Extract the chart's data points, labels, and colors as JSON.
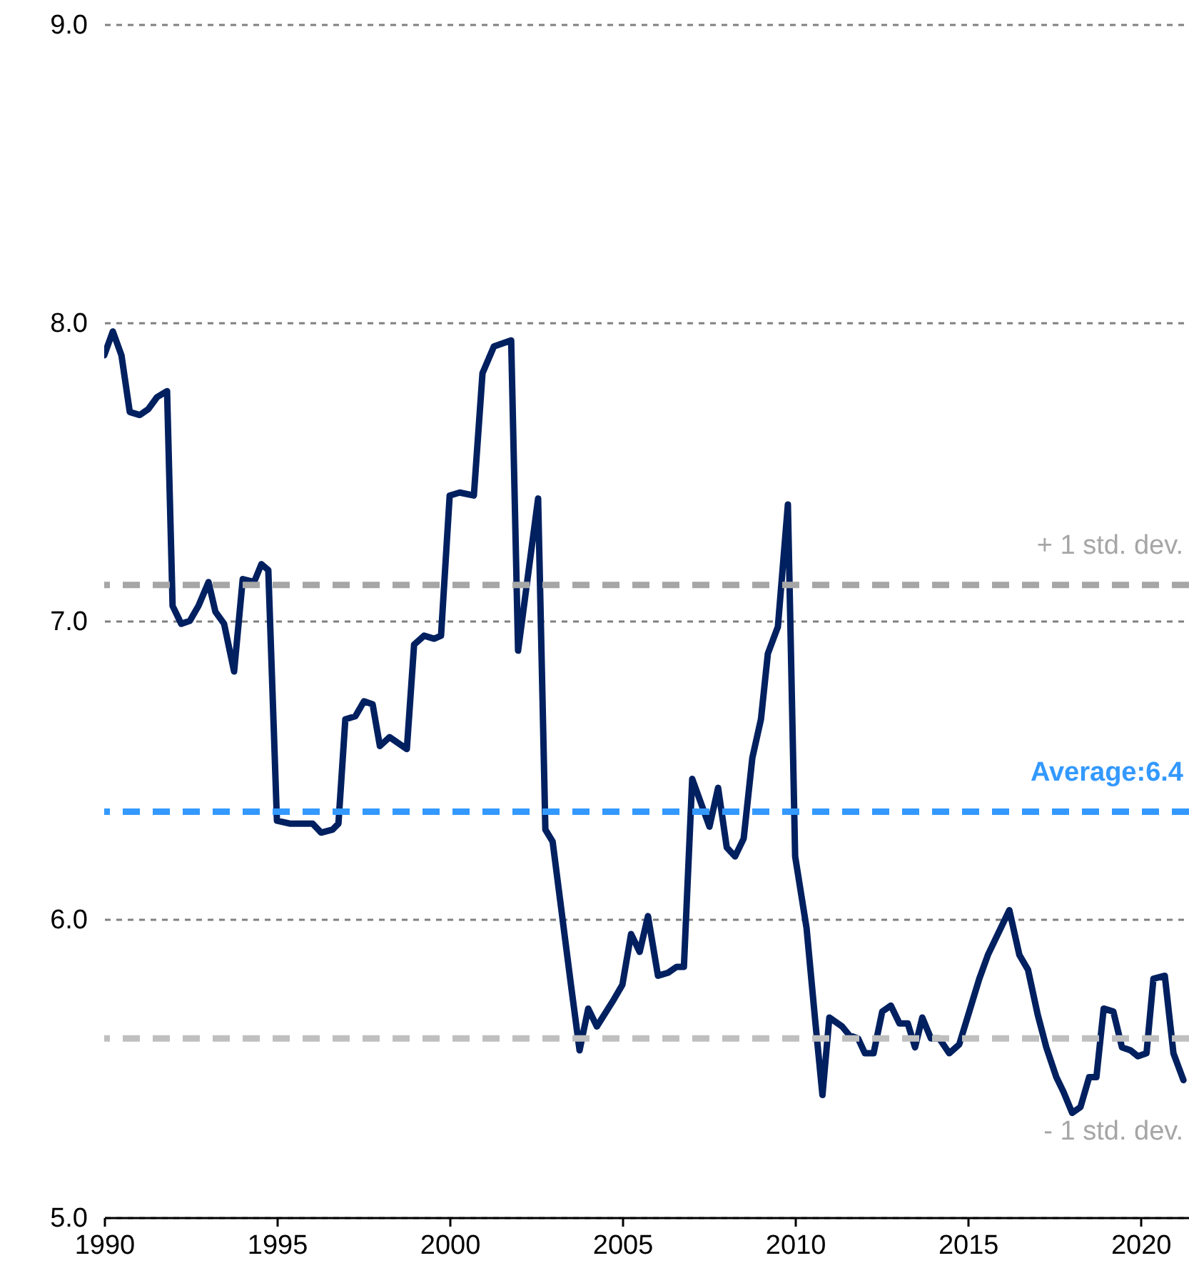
{
  "chart_data": {
    "type": "line",
    "x": [
      1990.0,
      1990.25,
      1990.5,
      1990.74,
      1991.03,
      1991.28,
      1991.53,
      1991.82,
      1991.98,
      1992.23,
      1992.48,
      1992.73,
      1993.02,
      1993.22,
      1993.47,
      1993.76,
      1994.01,
      1994.34,
      1994.55,
      1994.75,
      1995.0,
      1995.37,
      1995.74,
      1996.03,
      1996.28,
      1996.61,
      1996.78,
      1996.98,
      1997.27,
      1997.52,
      1997.77,
      1997.98,
      1998.26,
      1998.76,
      1998.97,
      1999.26,
      1999.55,
      1999.75,
      2000.0,
      2000.29,
      2000.7,
      2000.95,
      2001.28,
      2001.78,
      2001.98,
      2002.56,
      2002.77,
      2002.98,
      2003.51,
      2003.76,
      2004.01,
      2004.26,
      2004.75,
      2005.0,
      2005.25,
      2005.5,
      2005.74,
      2006.03,
      2006.32,
      2006.57,
      2006.78,
      2007.02,
      2007.52,
      2007.77,
      2008.02,
      2008.26,
      2008.51,
      2008.76,
      2009.01,
      2009.21,
      2009.5,
      2009.79,
      2010.0,
      2010.33,
      2010.58,
      2010.79,
      2010.99,
      2011.36,
      2011.57,
      2011.82,
      2012.02,
      2012.27,
      2012.52,
      2012.77,
      2013.02,
      2013.26,
      2013.47,
      2013.68,
      2013.93,
      2014.17,
      2014.46,
      2014.75,
      2015.04,
      2015.33,
      2015.58,
      2015.91,
      2016.2,
      2016.49,
      2016.74,
      2017.02,
      2017.27,
      2017.56,
      2017.77,
      2018.02,
      2018.26,
      2018.51,
      2018.72,
      2018.93,
      2019.21,
      2019.46,
      2019.71,
      2019.92,
      2020.17,
      2020.37,
      2020.7,
      2020.95,
      2021.24
    ],
    "series": [
      {
        "color": "#002060",
        "values": [
          7.89,
          7.97,
          7.89,
          7.7,
          7.69,
          7.71,
          7.75,
          7.77,
          7.05,
          6.99,
          7.0,
          7.05,
          7.13,
          7.03,
          6.99,
          6.83,
          7.14,
          7.13,
          7.19,
          7.17,
          6.33,
          6.32,
          6.32,
          6.32,
          6.29,
          6.3,
          6.32,
          6.67,
          6.68,
          6.73,
          6.72,
          6.58,
          6.61,
          6.57,
          6.92,
          6.95,
          6.94,
          6.95,
          7.42,
          7.43,
          7.42,
          7.83,
          7.92,
          7.94,
          6.9,
          7.41,
          6.3,
          6.26,
          5.78,
          5.56,
          5.7,
          5.64,
          5.73,
          5.78,
          5.95,
          5.89,
          6.01,
          5.81,
          5.82,
          5.84,
          5.84,
          6.47,
          6.31,
          6.44,
          6.24,
          6.21,
          6.27,
          6.54,
          6.67,
          6.89,
          6.98,
          7.39,
          6.21,
          5.97,
          5.66,
          5.41,
          5.67,
          5.64,
          5.61,
          5.6,
          5.55,
          5.55,
          5.69,
          5.71,
          5.65,
          5.65,
          5.57,
          5.67,
          5.6,
          5.6,
          5.55,
          5.58,
          5.69,
          5.8,
          5.88,
          5.96,
          6.03,
          5.88,
          5.83,
          5.68,
          5.57,
          5.47,
          5.42,
          5.35,
          5.37,
          5.47,
          5.47,
          5.7,
          5.69,
          5.57,
          5.56,
          5.54,
          5.55,
          5.8,
          5.81,
          5.55,
          5.46
        ]
      }
    ],
    "xlim": [
      1990,
      2021.4
    ],
    "xticks": [
      1990,
      1995,
      2000,
      2005,
      2010,
      2015,
      2020
    ],
    "ylim": [
      5,
      9
    ],
    "yticks": [
      {
        "value": 5,
        "label": "5.0"
      },
      {
        "value": 6,
        "label": "6.0"
      },
      {
        "value": 7,
        "label": "7.0"
      },
      {
        "value": 8,
        "label": "8.0"
      },
      {
        "value": 9,
        "label": "9.0"
      }
    ],
    "grid": "y",
    "ref_lines": [
      {
        "axis": "y",
        "value": 7.12,
        "label": "+ 1 std. dev.",
        "color": "#a6a6a6",
        "line_style": "dashed"
      },
      {
        "axis": "y",
        "value": 6.36,
        "label": "Average:6.4",
        "color": "#3399ff",
        "line_style": "dashed"
      },
      {
        "axis": "y",
        "value": 5.6,
        "label": "- 1 std. dev.",
        "color": "#bfbfbf",
        "line_style": "dashed"
      }
    ]
  }
}
